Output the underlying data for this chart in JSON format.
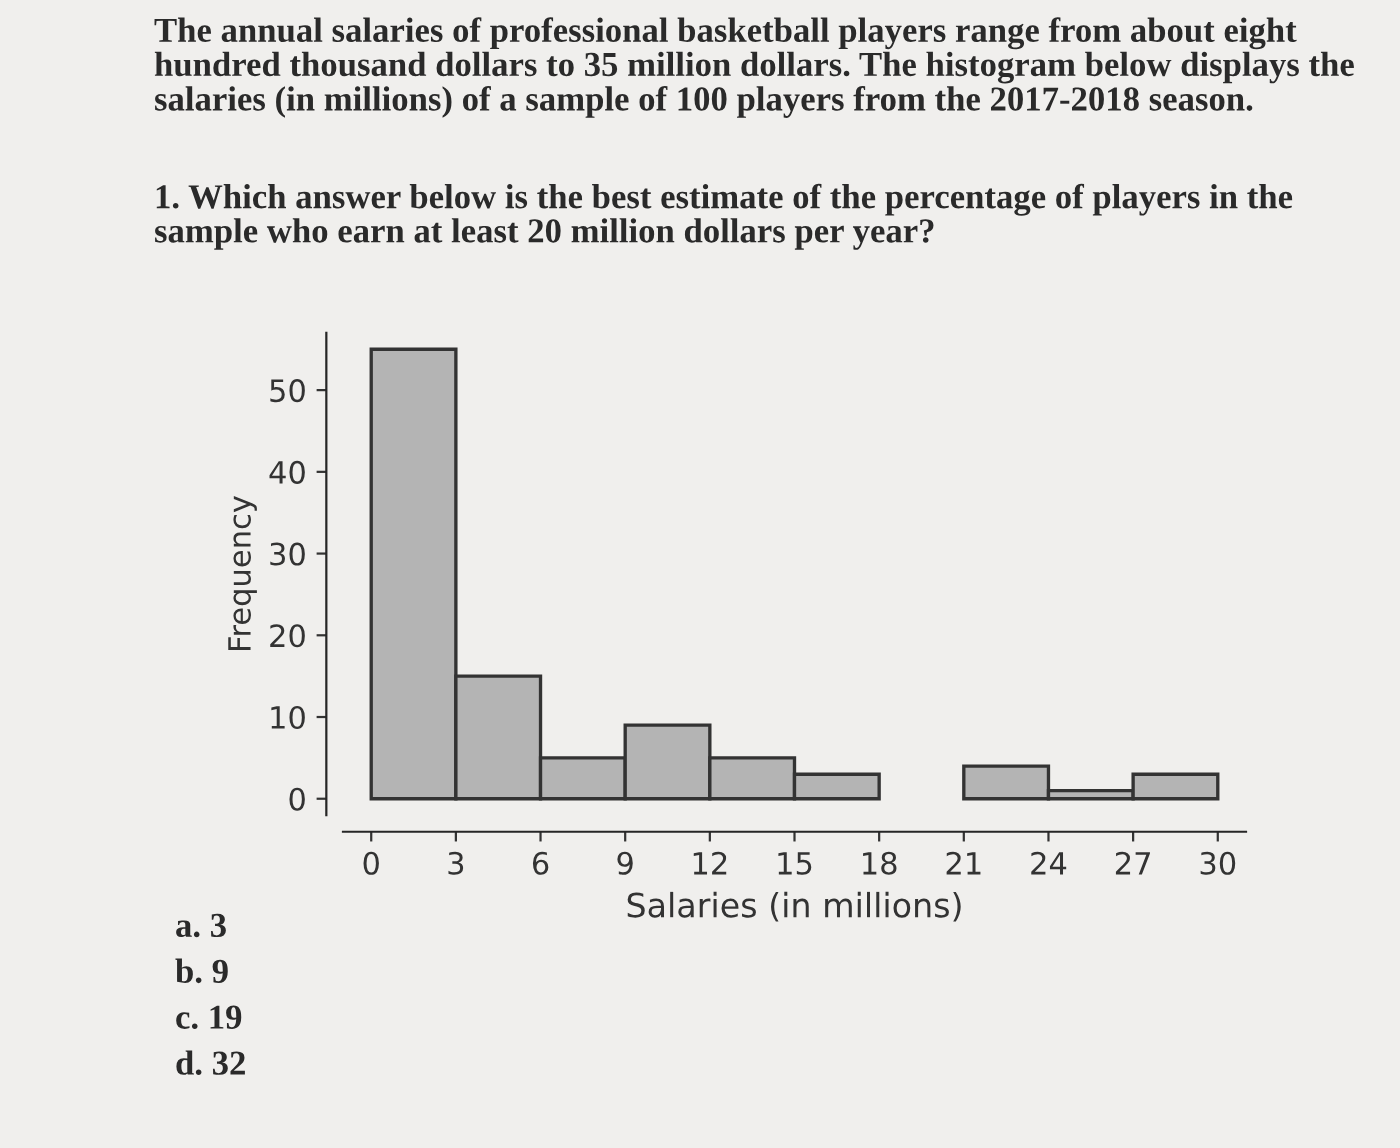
{
  "chart_data": {
    "type": "histogram",
    "title": "The annual salaries of professional basketball players range from about eight hundred thousand dollars to 35 million dollars. The histogram below displays the salaries (in millions) of a sample of 100 players from the 2017-2018 season.",
    "subtitle": "1. Which answer below is the best estimate of the percentage of players in the sample who earn at least 20 million dollars per year?",
    "xlabel": "Salaries (in millions)",
    "ylabel": "Frequency",
    "bins": [
      0,
      3,
      6,
      9,
      12,
      15,
      18,
      21,
      24,
      27,
      30
    ],
    "values": [
      55,
      15,
      5,
      9,
      5,
      3,
      0,
      4,
      1,
      3
    ],
    "color": "#b4b4b4",
    "xlim": [
      -1,
      31
    ],
    "xticks": [
      0,
      3,
      6,
      9,
      12,
      15,
      18,
      21,
      24,
      27,
      30
    ],
    "ylim": [
      -2,
      57
    ],
    "yticks": [
      0,
      10,
      20,
      30,
      40,
      50
    ],
    "grid": false,
    "legend": false,
    "annotations": [
      "a. 3",
      "b. 9",
      "c. 19",
      "d. 32"
    ]
  }
}
